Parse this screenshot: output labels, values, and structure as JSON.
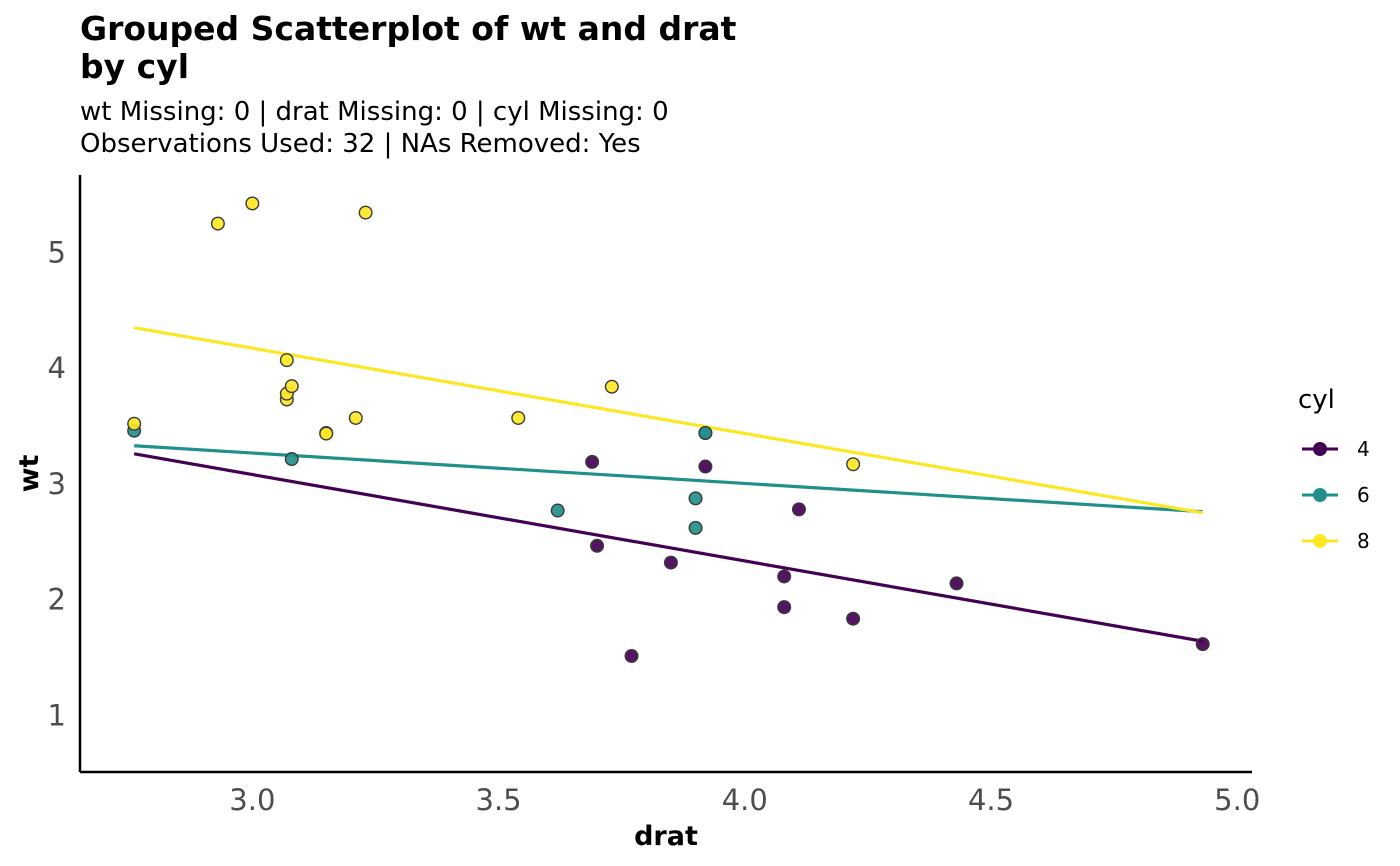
{
  "chart_data": {
    "type": "scatter",
    "title": [
      "Grouped Scatterplot of wt and drat",
      "by cyl"
    ],
    "subtitle": [
      "wt Missing: 0 | drat Missing: 0 | cyl Missing: 0",
      "Observations Used: 32 | NAs Removed: Yes"
    ],
    "xlabel": "drat",
    "ylabel": "wt",
    "xlim": [
      2.65,
      5.03
    ],
    "ylim": [
      0.51,
      5.67
    ],
    "xticks": [
      3.0,
      3.5,
      4.0,
      4.5,
      5.0
    ],
    "xtick_labels": [
      "3.0",
      "3.5",
      "4.0",
      "4.5",
      "5.0"
    ],
    "yticks": [
      1,
      2,
      3,
      4,
      5
    ],
    "ytick_labels": [
      "1",
      "2",
      "3",
      "4",
      "5"
    ],
    "grid": false,
    "legend": {
      "title": "cyl",
      "position": "right"
    },
    "series": [
      {
        "name": "4",
        "color": "#440154",
        "points": [
          {
            "x": 3.85,
            "y": 2.32
          },
          {
            "x": 3.69,
            "y": 3.19
          },
          {
            "x": 3.92,
            "y": 3.15
          },
          {
            "x": 4.08,
            "y": 2.2
          },
          {
            "x": 4.93,
            "y": 1.615
          },
          {
            "x": 4.22,
            "y": 1.835
          },
          {
            "x": 3.7,
            "y": 2.465
          },
          {
            "x": 4.08,
            "y": 1.935
          },
          {
            "x": 4.43,
            "y": 2.14
          },
          {
            "x": 3.77,
            "y": 1.513
          },
          {
            "x": 4.11,
            "y": 2.78
          }
        ],
        "fit": [
          {
            "x": 2.76,
            "y": 3.26
          },
          {
            "x": 4.93,
            "y": 1.64
          }
        ]
      },
      {
        "name": "6",
        "color": "#21908C",
        "points": [
          {
            "x": 3.9,
            "y": 2.62
          },
          {
            "x": 3.9,
            "y": 2.875
          },
          {
            "x": 3.08,
            "y": 3.215
          },
          {
            "x": 2.76,
            "y": 3.46
          },
          {
            "x": 3.92,
            "y": 3.44
          },
          {
            "x": 3.92,
            "y": 3.44
          },
          {
            "x": 3.62,
            "y": 2.77
          }
        ],
        "fit": [
          {
            "x": 2.76,
            "y": 3.33
          },
          {
            "x": 4.93,
            "y": 2.76
          }
        ]
      },
      {
        "name": "8",
        "color": "#FDE725",
        "points": [
          {
            "x": 3.15,
            "y": 3.44
          },
          {
            "x": 3.21,
            "y": 3.57
          },
          {
            "x": 3.07,
            "y": 4.07
          },
          {
            "x": 3.07,
            "y": 3.73
          },
          {
            "x": 3.07,
            "y": 3.78
          },
          {
            "x": 2.93,
            "y": 5.25
          },
          {
            "x": 3.0,
            "y": 5.424
          },
          {
            "x": 3.23,
            "y": 5.345
          },
          {
            "x": 2.76,
            "y": 3.52
          },
          {
            "x": 3.15,
            "y": 3.435
          },
          {
            "x": 3.73,
            "y": 3.84
          },
          {
            "x": 3.08,
            "y": 3.845
          },
          {
            "x": 4.22,
            "y": 3.17
          },
          {
            "x": 3.54,
            "y": 3.57
          }
        ],
        "fit": [
          {
            "x": 2.76,
            "y": 4.35
          },
          {
            "x": 4.93,
            "y": 2.75
          }
        ]
      }
    ]
  }
}
